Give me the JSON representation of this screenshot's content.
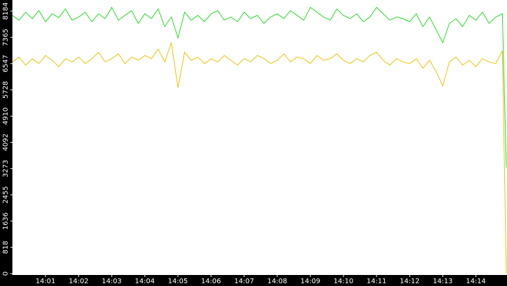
{
  "chart_data": {
    "type": "line",
    "x": [
      840,
      840.2,
      840.4,
      840.6,
      840.8,
      841,
      841.2,
      841.4,
      841.6,
      841.8,
      842,
      842.2,
      842.4,
      842.6,
      842.8,
      843,
      843.2,
      843.4,
      843.6,
      843.8,
      844,
      844.2,
      844.4,
      844.6,
      844.8,
      845,
      845.2,
      845.4,
      845.6,
      845.8,
      846,
      846.2,
      846.4,
      846.6,
      846.8,
      847,
      847.2,
      847.4,
      847.6,
      847.8,
      848,
      848.2,
      848.4,
      848.6,
      848.8,
      849,
      849.2,
      849.4,
      849.6,
      849.8,
      850,
      850.2,
      850.4,
      850.6,
      850.8,
      851,
      851.2,
      851.4,
      851.6,
      851.8,
      852,
      852.2,
      852.4,
      852.6,
      852.8,
      853,
      853.2,
      853.4,
      853.6,
      853.8,
      854,
      854.2,
      854.4,
      854.6,
      854.8,
      854.92
    ],
    "series": [
      {
        "color": "#22dd22",
        "values": [
          8050,
          7900,
          8150,
          7950,
          8200,
          7850,
          8100,
          7980,
          8250,
          7900,
          8000,
          8150,
          7850,
          8100,
          7950,
          8300,
          7900,
          8050,
          8200,
          7800,
          8100,
          7950,
          8250,
          7700,
          8000,
          7350,
          8150,
          7900,
          8050,
          7850,
          8100,
          8200,
          7900,
          8000,
          7850,
          8150,
          7950,
          8050,
          7800,
          8000,
          8100,
          7950,
          8200,
          8050,
          7900,
          8300,
          8150,
          8000,
          7900,
          8250,
          8050,
          7950,
          8100,
          7850,
          8000,
          8300,
          8100,
          7900,
          8000,
          7950,
          7850,
          8100,
          7700,
          8000,
          7600,
          7200,
          7800,
          7950,
          7700,
          8050,
          7900,
          8150,
          7800,
          8000,
          8100,
          3300
        ]
      },
      {
        "color": "#f0c000",
        "values": [
          6600,
          6750,
          6500,
          6700,
          6550,
          6800,
          6650,
          6450,
          6700,
          6600,
          6750,
          6550,
          6700,
          6900,
          6600,
          6700,
          6850,
          6550,
          6750,
          6650,
          6800,
          6700,
          7000,
          6600,
          7200,
          5800,
          6900,
          6650,
          6750,
          6550,
          6700,
          6600,
          6800,
          6650,
          6500,
          6700,
          6600,
          6800,
          6700,
          6550,
          6650,
          6850,
          6600,
          6750,
          6700,
          6550,
          6800,
          6650,
          6700,
          6850,
          6650,
          6550,
          6700,
          6600,
          6800,
          6900,
          6650,
          6500,
          6700,
          6600,
          6550,
          6700,
          6400,
          6650,
          6300,
          5850,
          6600,
          6750,
          6500,
          6650,
          6450,
          6700,
          6600,
          6550,
          6950,
          0
        ]
      }
    ],
    "xlim": [
      840,
      854.94
    ],
    "xticks": [
      {
        "value": 841,
        "label": "14:01"
      },
      {
        "value": 842,
        "label": "14:02"
      },
      {
        "value": 843,
        "label": "14:03"
      },
      {
        "value": 844,
        "label": "14:04"
      },
      {
        "value": 845,
        "label": "14:05"
      },
      {
        "value": 846,
        "label": "14:06"
      },
      {
        "value": 847,
        "label": "14:07"
      },
      {
        "value": 848,
        "label": "14:08"
      },
      {
        "value": 849,
        "label": "14:09"
      },
      {
        "value": 850,
        "label": "14:10"
      },
      {
        "value": 851,
        "label": "14:11"
      },
      {
        "value": 852,
        "label": "14:12"
      },
      {
        "value": 853,
        "label": "14:13"
      },
      {
        "value": 854,
        "label": "14:14"
      }
    ],
    "ylim": [
      0,
      8530
    ],
    "yticks": [
      0,
      818,
      1636,
      2455,
      3273,
      4092,
      4910,
      5728,
      6547,
      7365,
      8184
    ]
  }
}
